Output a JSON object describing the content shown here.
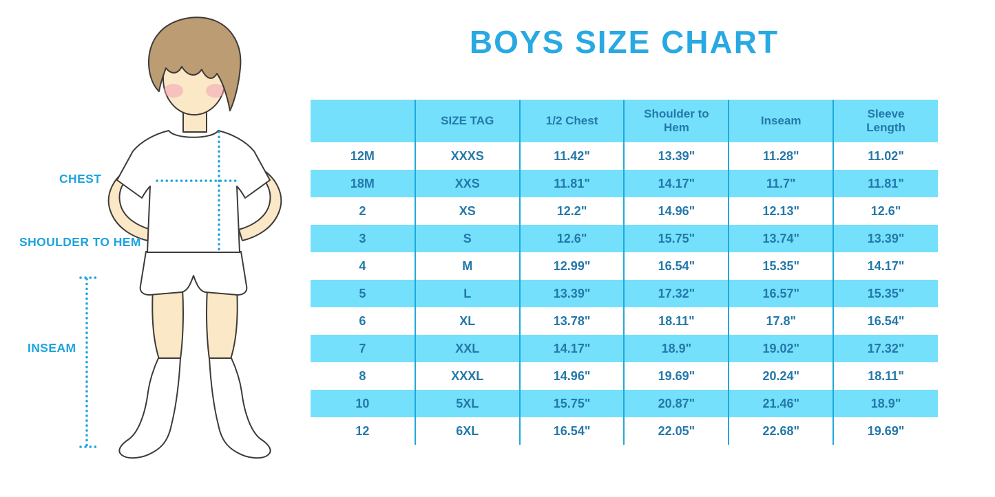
{
  "page_title": "BOYS SIZE CHART",
  "figure": {
    "type": "boy-measurement-illustration",
    "labels": {
      "chest": "CHEST",
      "shoulder_to_hem": "SHOULDER TO HEM",
      "inseam": "INSEAM"
    }
  },
  "colors": {
    "title_blue": "#29A9E2",
    "annotation_blue": "#1EA3DF",
    "table_band": "#74E0FC",
    "table_grid": "#1FA9DB",
    "table_text": "#2478A9",
    "skin": "#FBE8C6",
    "hair": "#BC9C72",
    "cheek": "#F2A2B6",
    "outline": "#3D3A37"
  },
  "chart_data": {
    "type": "table",
    "title": "BOYS SIZE CHART",
    "columns": [
      "",
      "SIZE TAG",
      "1/2 Chest",
      "Shoulder to Hem",
      "Inseam",
      "Sleeve Length"
    ],
    "rows": [
      [
        "12M",
        "XXXS",
        "11.42\"",
        "13.39\"",
        "11.28\"",
        "11.02\""
      ],
      [
        "18M",
        "XXS",
        "11.81\"",
        "14.17\"",
        "11.7\"",
        "11.81\""
      ],
      [
        "2",
        "XS",
        "12.2\"",
        "14.96\"",
        "12.13\"",
        "12.6\""
      ],
      [
        "3",
        "S",
        "12.6\"",
        "15.75\"",
        "13.74\"",
        "13.39\""
      ],
      [
        "4",
        "M",
        "12.99\"",
        "16.54\"",
        "15.35\"",
        "14.17\""
      ],
      [
        "5",
        "L",
        "13.39\"",
        "17.32\"",
        "16.57\"",
        "15.35\""
      ],
      [
        "6",
        "XL",
        "13.78\"",
        "18.11\"",
        "17.8\"",
        "16.54\""
      ],
      [
        "7",
        "XXL",
        "14.17\"",
        "18.9\"",
        "19.02\"",
        "17.32\""
      ],
      [
        "8",
        "XXXL",
        "14.96\"",
        "19.69\"",
        "20.24\"",
        "18.11\""
      ],
      [
        "10",
        "5XL",
        "15.75\"",
        "20.87\"",
        "21.46\"",
        "18.9\""
      ],
      [
        "12",
        "6XL",
        "16.54\"",
        "22.05\"",
        "22.68\"",
        "19.69\""
      ]
    ]
  }
}
